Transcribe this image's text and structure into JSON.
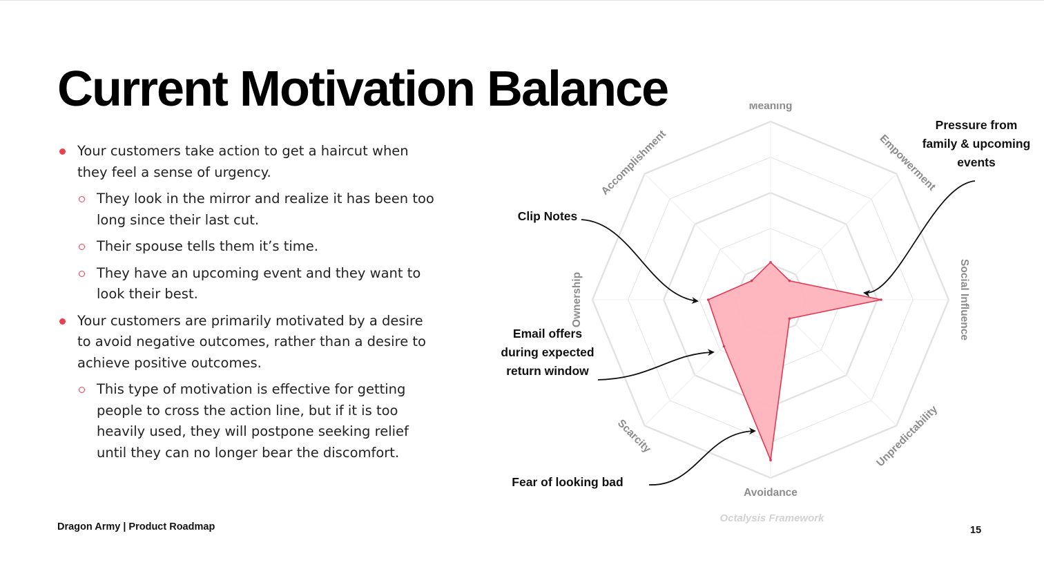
{
  "slide": {
    "title": "Current Motivation Balance",
    "footer": "Dragon Army | Product Roadmap",
    "page_number": "15"
  },
  "bullets": [
    {
      "level": 1,
      "text": "Your customers take action to get a haircut when they feel a sense of urgency."
    },
    {
      "level": 2,
      "text": "They look in the mirror and realize it has been too long since their last cut."
    },
    {
      "level": 2,
      "text": "Their spouse tells them it’s time."
    },
    {
      "level": 2,
      "text": "They have an upcoming event and they want to look their best."
    },
    {
      "level": 1,
      "text": "Your customers are primarily motivated by a desire to avoid negative outcomes, rather than a desire to achieve positive outcomes."
    },
    {
      "level": 2,
      "text": "This type of motivation is effective for getting people to cross the action line, but if it is too heavily used, they will postpone seeking relief until they can no longer bear the discomfort."
    }
  ],
  "chart_data": {
    "type": "radar",
    "categories": [
      "Meaning",
      "Empowerment",
      "Social Influence",
      "Unpredictability",
      "Avoidance",
      "Scarcity",
      "Ownership",
      "Accomplishment"
    ],
    "values": [
      0.21,
      0.15,
      0.62,
      0.15,
      0.9,
      0.37,
      0.35,
      0.15
    ],
    "range": [
      0,
      1
    ],
    "grid_rings": 5,
    "fill_color": "#ffb3bc",
    "line_color": "#e03a55",
    "grid_color": "#e2e2e2",
    "caption": "Octalysis Framework",
    "annotations": [
      {
        "lines": [
          "Pressure from",
          "family & upcoming",
          "events"
        ],
        "target": "Social Influence"
      },
      {
        "lines": [
          "Clip Notes"
        ],
        "target": "Ownership"
      },
      {
        "lines": [
          "Email offers",
          "during expected",
          "return window"
        ],
        "target": "Scarcity"
      },
      {
        "lines": [
          "Fear of looking bad"
        ],
        "target": "Avoidance"
      }
    ]
  },
  "colors": {
    "accent": "#e8414f",
    "axis_label": "#8c8c8c"
  }
}
